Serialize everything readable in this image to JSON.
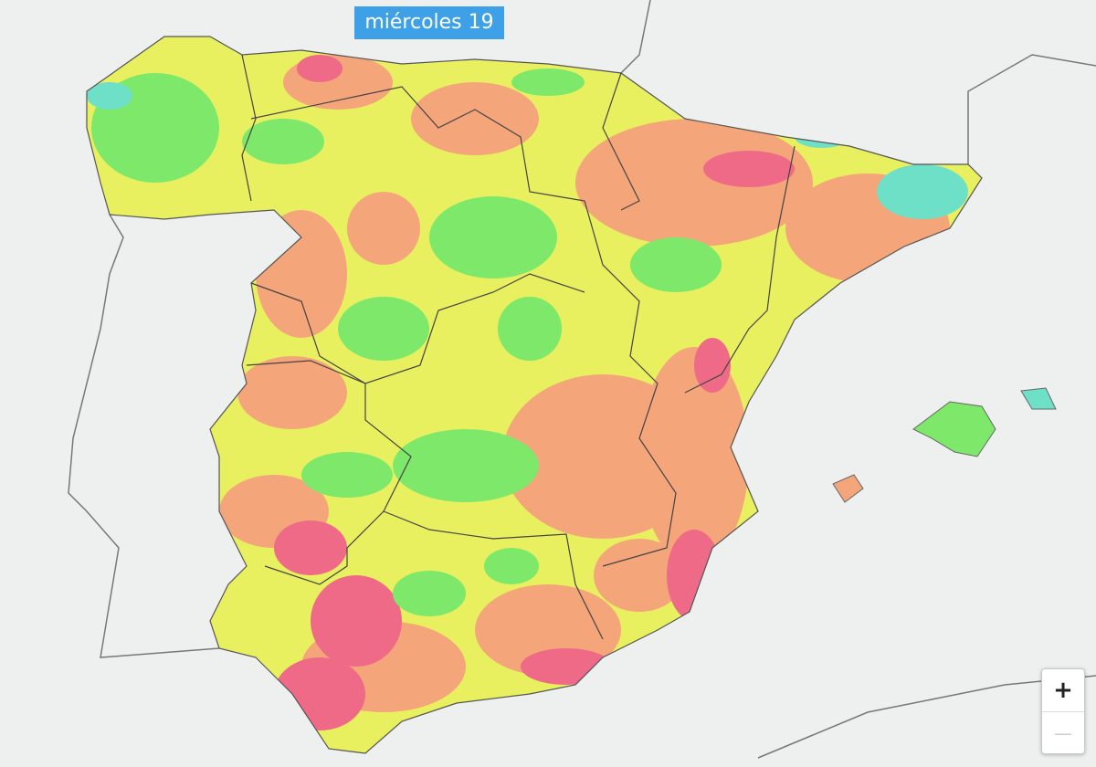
{
  "header": {
    "date_label": "miércoles 19"
  },
  "zoom": {
    "in": "+",
    "out": "—"
  }
}
